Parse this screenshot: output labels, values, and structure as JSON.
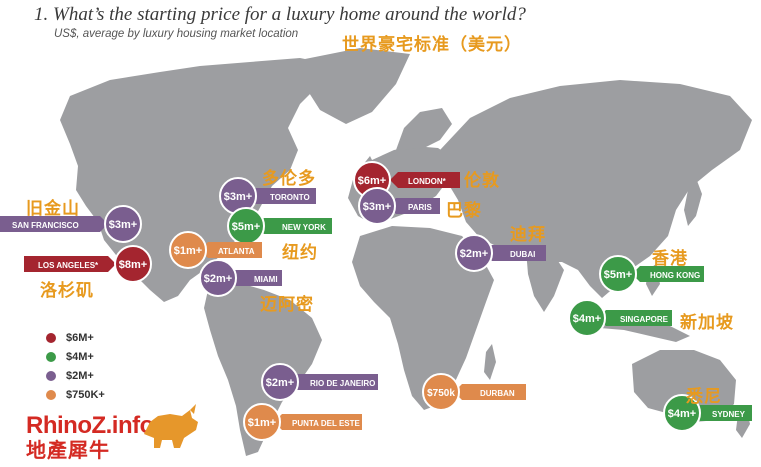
{
  "header": {
    "title": "1. What’s the starting price for a luxury home around the world?",
    "subtitle": "US$, average by luxury housing market location",
    "title_zh": "世界豪宅标准（美元）"
  },
  "colors": {
    "land": "#9d9ea1",
    "ocean": "#ffffff",
    "tier_6m": "#a4252f",
    "tier_4m": "#3c9a48",
    "tier_2m": "#7a5e8f",
    "tier_750k": "#df8a4c",
    "chinese_label": "#e79a1f"
  },
  "legend": {
    "items": [
      {
        "label": "$6M+",
        "color": "#a4252f"
      },
      {
        "label": "$4M+",
        "color": "#3c9a48"
      },
      {
        "label": "$2M+",
        "color": "#7a5e8f"
      },
      {
        "label": "$750K+",
        "color": "#df8a4c"
      }
    ]
  },
  "markers": [
    {
      "city": "SAN FRANCISCO",
      "price": "$3m+",
      "zh": "旧金山",
      "tier": "2m"
    },
    {
      "city": "LOS ANGELES*",
      "price": "$8m+",
      "zh": "洛杉矶",
      "tier": "6m"
    },
    {
      "city": "TORONTO",
      "price": "$3m+",
      "zh": "多伦多",
      "tier": "2m"
    },
    {
      "city": "NEW YORK",
      "price": "$5m+",
      "zh": "纽约",
      "tier": "4m"
    },
    {
      "city": "ATLANTA",
      "price": "$1m+",
      "zh": "",
      "tier": "750k"
    },
    {
      "city": "MIAMI",
      "price": "$2m+",
      "zh": "迈阿密",
      "tier": "2m"
    },
    {
      "city": "LONDON*",
      "price": "$6m+",
      "zh": "伦敦",
      "tier": "6m"
    },
    {
      "city": "PARIS",
      "price": "$3m+",
      "zh": "巴黎",
      "tier": "2m"
    },
    {
      "city": "DUBAI",
      "price": "$2m+",
      "zh": "迪拜",
      "tier": "2m"
    },
    {
      "city": "HONG KONG",
      "price": "$5m+",
      "zh": "香港",
      "tier": "4m"
    },
    {
      "city": "SINGAPORE",
      "price": "$4m+",
      "zh": "新加坡",
      "tier": "4m"
    },
    {
      "city": "RIO DE JANEIRO",
      "price": "$2m+",
      "zh": "",
      "tier": "2m"
    },
    {
      "city": "PUNTA DEL ESTE",
      "price": "$1m+",
      "zh": "",
      "tier": "750k"
    },
    {
      "city": "DURBAN",
      "price": "$750k",
      "zh": "",
      "tier": "750k"
    },
    {
      "city": "SYDNEY",
      "price": "$4m+",
      "zh": "悉尼",
      "tier": "4m"
    }
  ],
  "logo": {
    "text_top": "RhinoZ.info",
    "text_bottom": "地產犀牛"
  }
}
